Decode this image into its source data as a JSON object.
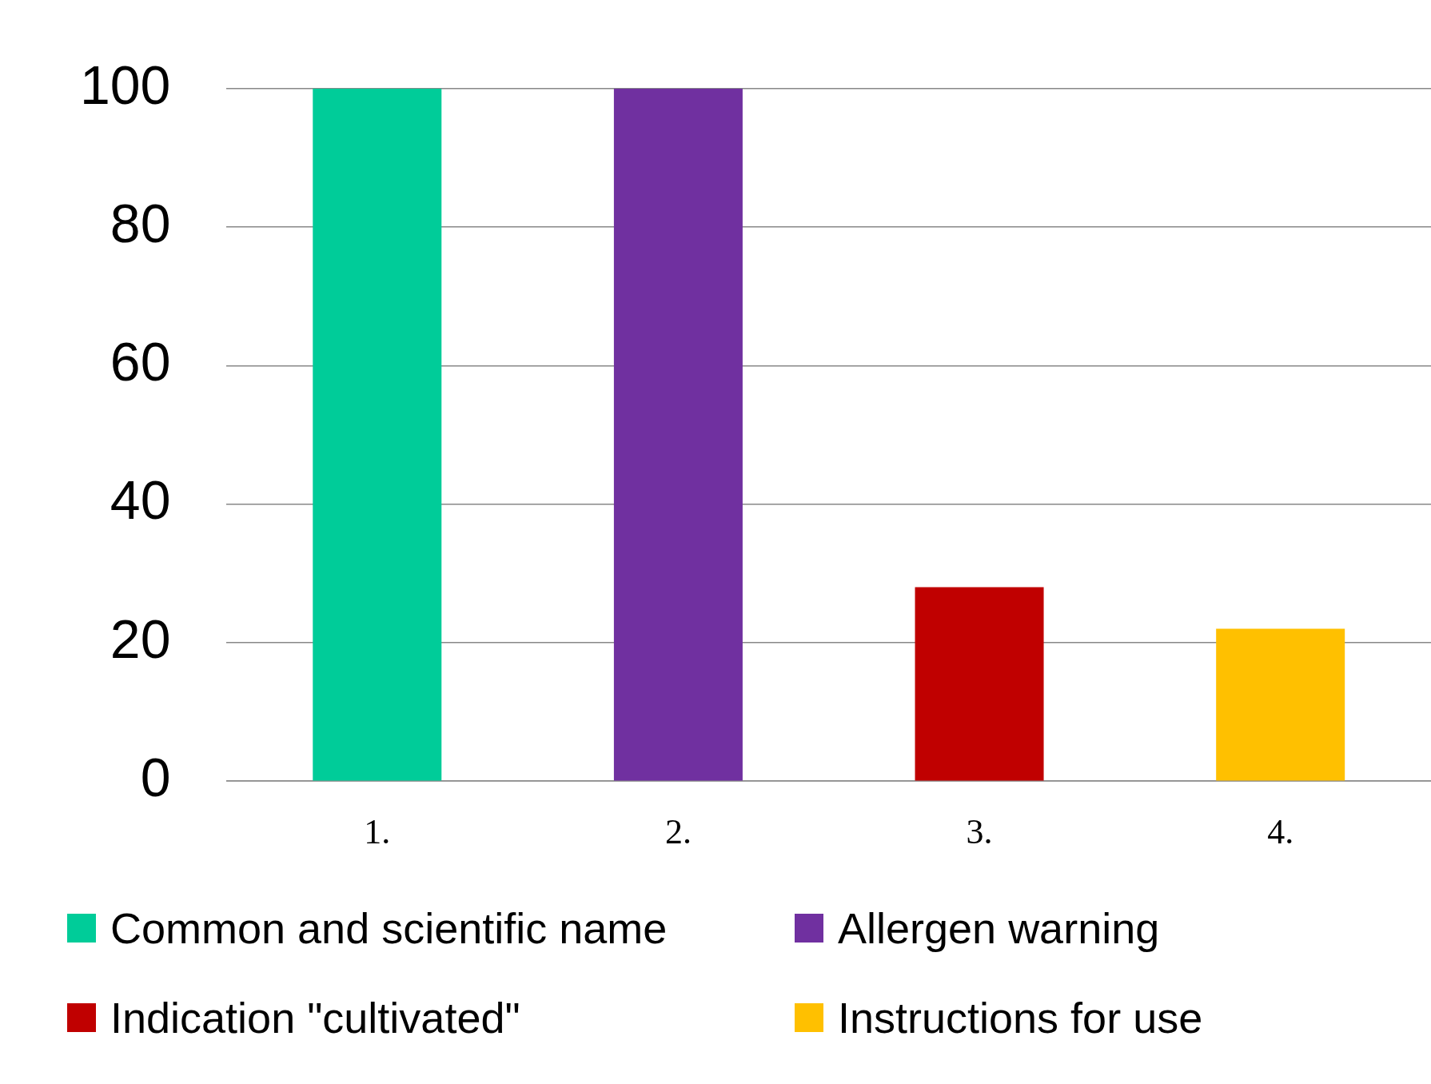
{
  "chart_data": {
    "type": "bar",
    "categories": [
      "1.",
      "2.",
      "3.",
      "4."
    ],
    "series": [
      {
        "name": "Common and scientific name",
        "color": "#00cc99",
        "values": [
          100,
          null,
          null,
          null
        ]
      },
      {
        "name": "Allergen warning",
        "color": "#7030a0",
        "values": [
          null,
          100,
          null,
          null
        ]
      },
      {
        "name": "Indication \"cultivated\"",
        "color": "#c00000",
        "values": [
          null,
          null,
          28,
          null
        ]
      },
      {
        "name": "Instructions for use",
        "color": "#ffc000",
        "values": [
          null,
          null,
          null,
          22
        ]
      }
    ],
    "ylim": [
      0,
      100
    ],
    "yticks": [
      0,
      20,
      40,
      60,
      80,
      100
    ],
    "grid": "y",
    "legend": "bottom"
  }
}
